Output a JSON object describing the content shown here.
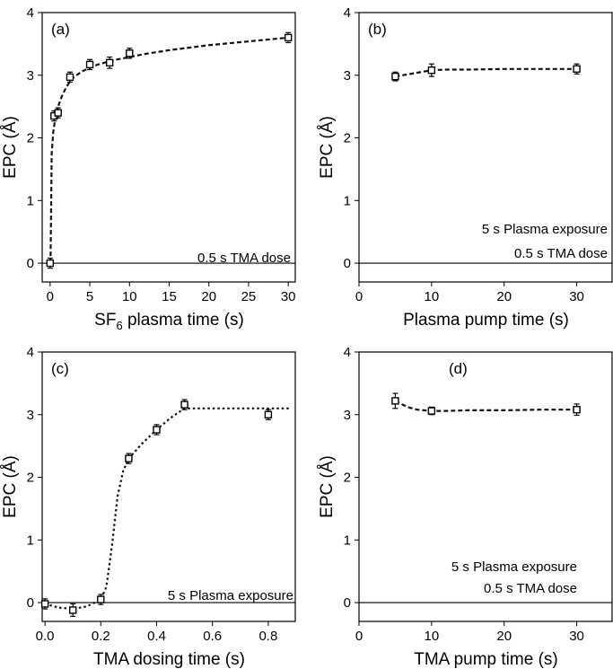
{
  "chart_data": [
    {
      "type": "scatter",
      "panel_label": "(a)",
      "xlabel": "SF6 plasma time (s)",
      "ylabel": "EPC (Å)",
      "xlim": [
        -1,
        31
      ],
      "ylim": [
        -0.3,
        4
      ],
      "x_ticks": [
        0,
        5,
        10,
        15,
        20,
        25,
        30
      ],
      "x_tick_labels": [
        "0",
        "5",
        "10",
        "15",
        "20",
        "25",
        "30"
      ],
      "y_ticks": [
        0,
        1,
        2,
        3,
        4
      ],
      "y_tick_labels": [
        "0",
        "1",
        "2",
        "3",
        "4"
      ],
      "annotations": [
        "0.5 s TMA dose"
      ],
      "baseline_y": 0,
      "series": [
        {
          "marker": "open-square",
          "x": [
            0,
            0.5,
            1,
            2.5,
            5,
            7.5,
            10,
            30
          ],
          "y": [
            0.0,
            2.35,
            2.4,
            2.97,
            3.17,
            3.2,
            3.35,
            3.6
          ],
          "error": [
            0.08,
            0.08,
            0.08,
            0.08,
            0.08,
            0.09,
            0.08,
            0.08
          ]
        }
      ],
      "fit": {
        "style": "dashed",
        "x": [
          0.05,
          0.2,
          0.4,
          0.7,
          1,
          1.5,
          2,
          2.5,
          3,
          4,
          5,
          6,
          8,
          10,
          12,
          15,
          20,
          25,
          30
        ],
        "y": [
          0.0,
          1.75,
          2.1,
          2.35,
          2.5,
          2.67,
          2.8,
          2.9,
          2.97,
          3.06,
          3.12,
          3.17,
          3.24,
          3.29,
          3.34,
          3.4,
          3.48,
          3.54,
          3.6
        ]
      }
    },
    {
      "type": "scatter",
      "panel_label": "(b)",
      "xlabel": "Plasma pump time (s)",
      "ylabel": "EPC (Å)",
      "xlim": [
        0,
        35
      ],
      "ylim": [
        -0.3,
        4
      ],
      "x_ticks": [
        0,
        10,
        20,
        30
      ],
      "x_tick_labels": [
        "0",
        "10",
        "20",
        "30"
      ],
      "y_ticks": [
        0,
        1,
        2,
        3,
        4
      ],
      "y_tick_labels": [
        "0",
        "1",
        "2",
        "3",
        "4"
      ],
      "annotations": [
        "5 s Plasma exposure",
        "0.5 s TMA dose"
      ],
      "baseline_y": 0,
      "series": [
        {
          "marker": "open-square",
          "x": [
            5,
            10,
            30
          ],
          "y": [
            2.98,
            3.08,
            3.1
          ],
          "error": [
            0.07,
            0.1,
            0.08
          ]
        }
      ],
      "fit": {
        "style": "dashed",
        "x": [
          5,
          7,
          9,
          10,
          12,
          15,
          20,
          25,
          30
        ],
        "y": [
          2.98,
          3.02,
          3.06,
          3.08,
          3.09,
          3.09,
          3.1,
          3.1,
          3.1
        ]
      }
    },
    {
      "type": "scatter",
      "panel_label": "(c)",
      "xlabel": "TMA dosing time (s)",
      "ylabel": "EPC (Å)",
      "xlim": [
        -0.01,
        0.9
      ],
      "ylim": [
        -0.3,
        4
      ],
      "x_ticks": [
        0.0,
        0.2,
        0.4,
        0.6,
        0.8
      ],
      "x_tick_labels": [
        "0.0",
        "0.2",
        "0.4",
        "0.6",
        "0.8"
      ],
      "y_ticks": [
        0,
        1,
        2,
        3,
        4
      ],
      "y_tick_labels": [
        "0",
        "1",
        "2",
        "3",
        "4"
      ],
      "annotations": [
        "5  s Plasma exposure"
      ],
      "baseline_y": 0,
      "series": [
        {
          "marker": "open-square",
          "x": [
            0.0,
            0.1,
            0.2,
            0.3,
            0.4,
            0.5,
            0.8
          ],
          "y": [
            -0.02,
            -0.12,
            0.05,
            2.3,
            2.76,
            3.16,
            3.0
          ],
          "error": [
            0.08,
            0.1,
            0.08,
            0.08,
            0.08,
            0.08,
            0.08
          ]
        }
      ],
      "fit": {
        "style": "dotted",
        "x": [
          0.0,
          0.05,
          0.1,
          0.15,
          0.2,
          0.22,
          0.24,
          0.26,
          0.28,
          0.3,
          0.35,
          0.4,
          0.45,
          0.5,
          0.6,
          0.7,
          0.8,
          0.88
        ],
        "y": [
          -0.02,
          -0.08,
          -0.1,
          -0.06,
          0.05,
          0.25,
          0.9,
          1.7,
          2.1,
          2.3,
          2.55,
          2.76,
          2.95,
          3.1,
          3.1,
          3.1,
          3.1,
          3.1
        ]
      }
    },
    {
      "type": "scatter",
      "panel_label": "(d)",
      "xlabel": "TMA pump time (s)",
      "ylabel": "EPC (Å)",
      "xlim": [
        0,
        35
      ],
      "ylim": [
        -0.3,
        4
      ],
      "x_ticks": [
        0,
        10,
        20,
        30
      ],
      "x_tick_labels": [
        "0",
        "10",
        "20",
        "30"
      ],
      "y_ticks": [
        0,
        1,
        2,
        3,
        4
      ],
      "y_tick_labels": [
        "0",
        "1",
        "2",
        "3",
        "4"
      ],
      "annotations": [
        "5 s Plasma exposure",
        "0.5 s TMA dose"
      ],
      "baseline_y": 0,
      "series": [
        {
          "marker": "open-square",
          "x": [
            5,
            10,
            30
          ],
          "y": [
            3.22,
            3.06,
            3.08
          ],
          "error": [
            0.12,
            0.06,
            0.09
          ]
        }
      ],
      "fit": {
        "style": "dashed",
        "x": [
          5,
          6,
          7,
          8,
          10,
          12,
          15,
          20,
          25,
          30
        ],
        "y": [
          3.22,
          3.16,
          3.11,
          3.08,
          3.06,
          3.06,
          3.07,
          3.07,
          3.08,
          3.08
        ]
      }
    }
  ]
}
